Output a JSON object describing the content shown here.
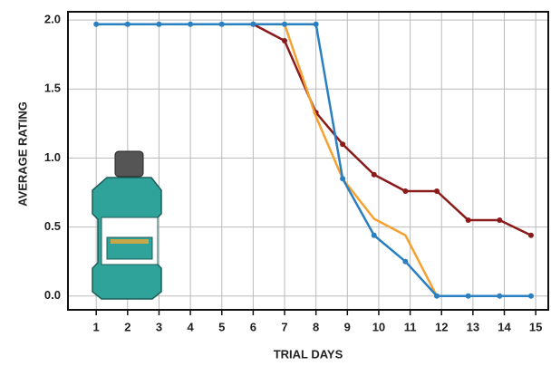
{
  "chart_data": {
    "type": "line",
    "x_label": "TRIAL DAYS",
    "y_label": "AVERAGE RATING",
    "x": [
      1,
      2,
      3,
      4,
      5,
      6,
      7,
      8,
      8.85,
      9.85,
      10.85,
      11.85,
      12.85,
      13.85,
      14.85
    ],
    "series": [
      {
        "color": "#8b1a1a",
        "markers": true,
        "values": [
          null,
          null,
          null,
          null,
          null,
          1.97,
          1.85,
          1.33,
          1.1,
          0.88,
          0.76,
          0.76,
          0.55,
          0.55,
          0.44
        ]
      },
      {
        "color": "#f5a030",
        "markers": false,
        "values": [
          null,
          null,
          null,
          null,
          null,
          null,
          1.97,
          1.3,
          0.85,
          0.56,
          0.44,
          0,
          null,
          null,
          null
        ]
      },
      {
        "color": "#2a7fc1",
        "markers": true,
        "values": [
          1.97,
          1.97,
          1.97,
          1.97,
          1.97,
          1.97,
          1.97,
          1.97,
          0.85,
          0.44,
          0.25,
          0,
          0,
          0,
          0
        ]
      }
    ],
    "xlim": [
      0.1,
      15.4
    ],
    "ylim": [
      -0.1,
      2.06
    ],
    "xticks": [
      1,
      2,
      3,
      4,
      5,
      6,
      7,
      8,
      9,
      10,
      11,
      12,
      13,
      14,
      15
    ],
    "yticks": [
      {
        "value": 0,
        "label": "0.0"
      },
      {
        "value": 0.5,
        "label": "0.5"
      },
      {
        "value": 1,
        "label": "1.0"
      },
      {
        "value": 1.5,
        "label": "1.5"
      },
      {
        "value": 2,
        "label": "2.0"
      }
    ],
    "grid": true
  }
}
